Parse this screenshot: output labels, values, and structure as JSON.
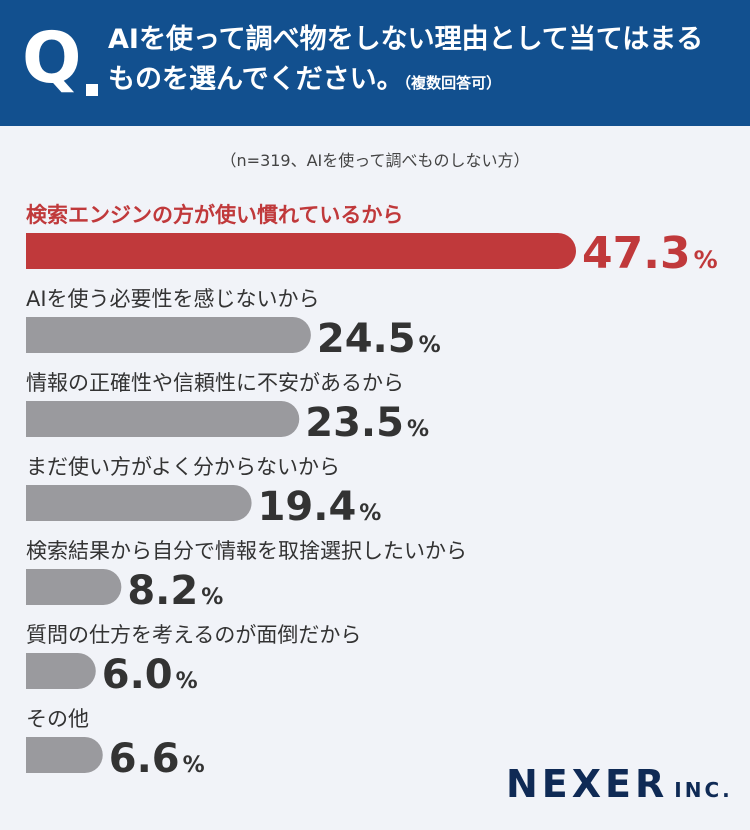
{
  "question": {
    "mark": "Q",
    "line1": "AIを使って調べ物をしない理由として当てはまる",
    "line2": "ものを選んでください。",
    "note": "（複数回答可）"
  },
  "sample_note": "（n=319、AIを使って調べものしない方）",
  "logo": {
    "main": "NEXER",
    "sub": "INC."
  },
  "colors": {
    "highlight": "#c0393b",
    "bar": "#9a9a9e",
    "header": "#12508f",
    "logo": "#0f2a55"
  },
  "chart_data": {
    "type": "bar",
    "orientation": "horizontal",
    "unit": "%",
    "categories": [
      "検索エンジンの方が使い慣れているから",
      "AIを使う必要性を感じないから",
      "情報の正確性や信頼性に不安があるから",
      "まだ使い方がよく分からないから",
      "検索結果から自分で情報を取捨選択したいから",
      "質問の仕方を考えるのが面倒だから",
      "その他"
    ],
    "values": [
      47.3,
      24.5,
      23.5,
      19.4,
      8.2,
      6.0,
      6.6
    ],
    "value_labels": [
      "47.3",
      "24.5",
      "23.5",
      "19.4",
      "8.2",
      "6.0",
      "6.6"
    ],
    "highlighted_index": 0
  }
}
